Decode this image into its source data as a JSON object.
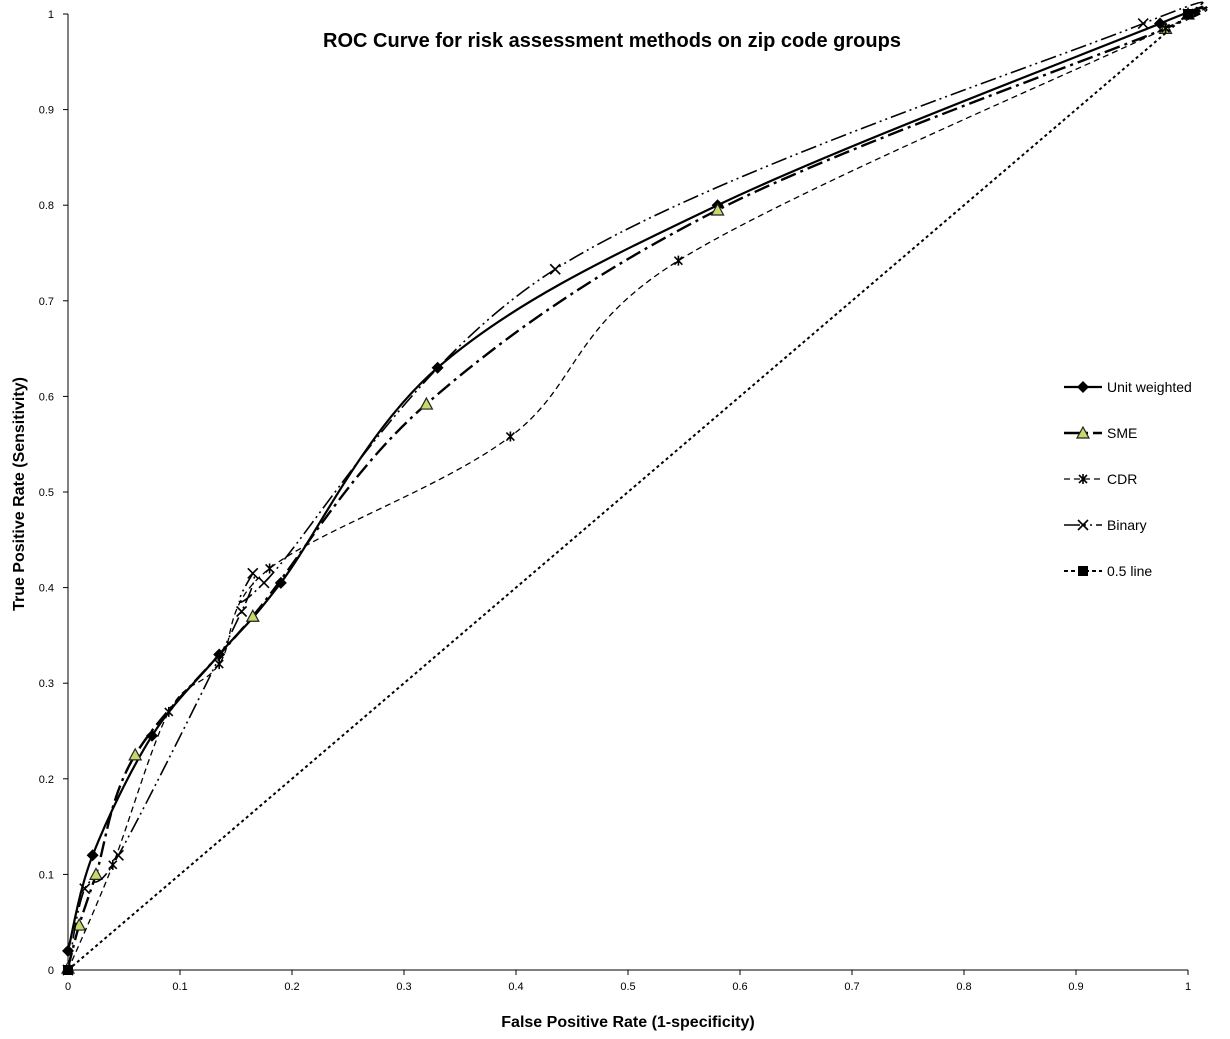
{
  "chart_data": {
    "type": "line",
    "title": "ROC Curve for risk assessment methods on zip code groups",
    "xlabel": "False Positive Rate (1-specificity)",
    "ylabel": "True Positive Rate (Sensitivity)",
    "xlim": [
      0,
      1
    ],
    "ylim": [
      0,
      1
    ],
    "x_ticks": [
      "0",
      "0.1",
      "0.2",
      "0.3",
      "0.4",
      "0.5",
      "0.6",
      "0.7",
      "0.8",
      "0.9",
      "1"
    ],
    "y_ticks": [
      "0",
      "0.1",
      "0.2",
      "0.3",
      "0.4",
      "0.5",
      "0.6",
      "0.7",
      "0.8",
      "0.9",
      "1"
    ],
    "grid": false,
    "legend_position": "right",
    "series": [
      {
        "name": "Unit weighted",
        "marker": "diamond",
        "line_style": "solid",
        "color": "#000000",
        "points": [
          [
            0,
            0.02
          ],
          [
            0.022,
            0.12
          ],
          [
            0.075,
            0.245
          ],
          [
            0.135,
            0.33
          ],
          [
            0.19,
            0.405
          ],
          [
            0.33,
            0.63
          ],
          [
            0.58,
            0.8
          ],
          [
            0.975,
            0.99
          ],
          [
            1,
            1
          ]
        ]
      },
      {
        "name": "SME",
        "marker": "triangle",
        "line_style": "dash-dot",
        "color": "#000000",
        "marker_color": "#c8d86a",
        "points": [
          [
            0,
            0.002
          ],
          [
            0.01,
            0.047
          ],
          [
            0.025,
            0.1
          ],
          [
            0.06,
            0.225
          ],
          [
            0.165,
            0.37
          ],
          [
            0.32,
            0.592
          ],
          [
            0.58,
            0.795
          ],
          [
            0.98,
            0.985
          ],
          [
            1,
            1
          ]
        ]
      },
      {
        "name": "CDR",
        "marker": "asterisk",
        "line_style": "dashed",
        "color": "#000000",
        "points": [
          [
            0,
            0
          ],
          [
            0.04,
            0.11
          ],
          [
            0.09,
            0.27
          ],
          [
            0.135,
            0.32
          ],
          [
            0.18,
            0.42
          ],
          [
            0.395,
            0.558
          ],
          [
            0.545,
            0.742
          ],
          [
            0.98,
            0.985
          ],
          [
            1,
            1
          ]
        ]
      },
      {
        "name": "Binary",
        "marker": "x",
        "line_style": "dash-dot-dot",
        "color": "#000000",
        "points": [
          [
            0,
            0
          ],
          [
            0.015,
            0.085
          ],
          [
            0.045,
            0.12
          ],
          [
            0.155,
            0.375
          ],
          [
            0.165,
            0.415
          ],
          [
            0.175,
            0.405
          ],
          [
            0.435,
            0.733
          ],
          [
            0.96,
            0.99
          ],
          [
            1,
            1
          ]
        ]
      },
      {
        "name": "0.5 line",
        "marker": "square",
        "line_style": "dotted",
        "color": "#000000",
        "points": [
          [
            0,
            0
          ],
          [
            1,
            1
          ]
        ]
      }
    ]
  }
}
